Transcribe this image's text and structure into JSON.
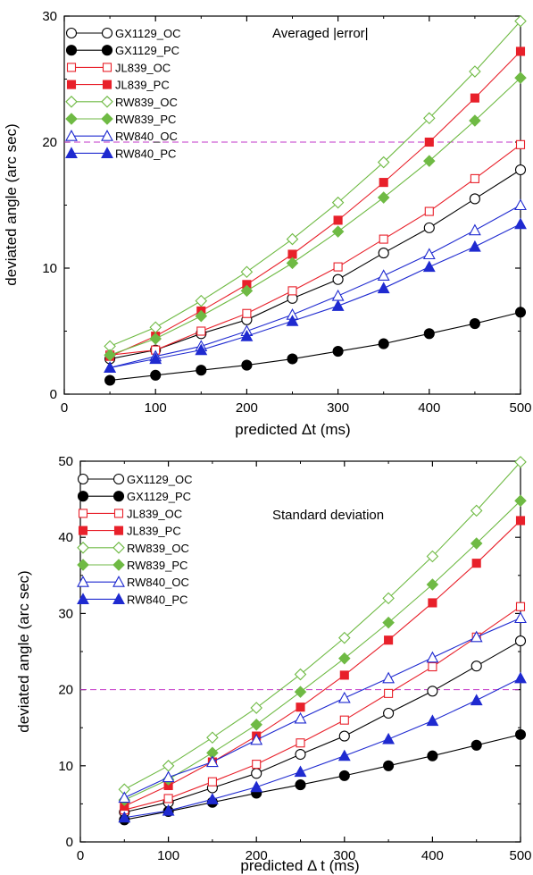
{
  "chart_data": [
    {
      "type": "line",
      "annotation": "Averaged |error|",
      "xlabel": "predicted Δt (ms)",
      "ylabel": "deviated angle (arc sec)",
      "xlim": [
        0,
        500
      ],
      "ylim": [
        0,
        30
      ],
      "xticks": [
        0,
        100,
        200,
        300,
        400,
        500
      ],
      "yticks": [
        0,
        10,
        20,
        30
      ],
      "reference_line": 20,
      "grid": false,
      "legend_position": "top-left",
      "x": [
        50,
        100,
        150,
        200,
        250,
        300,
        350,
        400,
        450,
        500
      ],
      "series": [
        {
          "name": "GX1129_OC",
          "color": "#000000",
          "marker": "circle",
          "filled": false,
          "values": [
            2.8,
            3.5,
            4.8,
            5.9,
            7.6,
            9.1,
            11.2,
            13.2,
            15.5,
            17.8
          ]
        },
        {
          "name": "GX1129_PC",
          "color": "#000000",
          "marker": "circle",
          "filled": true,
          "values": [
            1.1,
            1.5,
            1.9,
            2.3,
            2.8,
            3.4,
            4.0,
            4.8,
            5.6,
            6.5
          ]
        },
        {
          "name": "JL839_OC",
          "color": "#e8202a",
          "marker": "square",
          "filled": false,
          "values": [
            3.1,
            3.5,
            5.0,
            6.4,
            8.2,
            10.1,
            12.3,
            14.5,
            17.1,
            19.8
          ]
        },
        {
          "name": "JL839_PC",
          "color": "#e8202a",
          "marker": "square",
          "filled": true,
          "values": [
            3.0,
            4.6,
            6.6,
            8.7,
            11.1,
            13.8,
            16.8,
            20.0,
            23.5,
            27.2
          ]
        },
        {
          "name": "RW839_OC",
          "color": "#6fba44",
          "marker": "diamond",
          "filled": false,
          "values": [
            3.8,
            5.3,
            7.4,
            9.7,
            12.3,
            15.2,
            18.4,
            21.9,
            25.6,
            29.6
          ]
        },
        {
          "name": "RW839_PC",
          "color": "#6fba44",
          "marker": "diamond",
          "filled": true,
          "values": [
            3.1,
            4.4,
            6.2,
            8.2,
            10.4,
            12.9,
            15.6,
            18.5,
            21.7,
            25.1
          ]
        },
        {
          "name": "RW840_OC",
          "color": "#1f2ad0",
          "marker": "triangle",
          "filled": false,
          "values": [
            2.1,
            3.0,
            3.8,
            5.0,
            6.3,
            7.8,
            9.4,
            11.1,
            13.0,
            15.0
          ]
        },
        {
          "name": "RW840_PC",
          "color": "#1f2ad0",
          "marker": "triangle",
          "filled": true,
          "values": [
            2.1,
            2.8,
            3.5,
            4.6,
            5.8,
            7.0,
            8.4,
            10.1,
            11.7,
            13.5
          ]
        }
      ]
    },
    {
      "type": "line",
      "annotation": "Standard deviation",
      "xlabel": "predicted Δ t (ms)",
      "ylabel": "deviated angle (arc sec)",
      "xlim": [
        0,
        500
      ],
      "ylim": [
        0,
        50
      ],
      "xticks": [
        0,
        100,
        200,
        300,
        400,
        500
      ],
      "yticks": [
        0,
        10,
        20,
        30,
        40,
        50
      ],
      "reference_line": 20,
      "grid": false,
      "legend_position": "top-left",
      "x": [
        50,
        100,
        150,
        200,
        250,
        300,
        350,
        400,
        450,
        500
      ],
      "series": [
        {
          "name": "GX1129_OC",
          "color": "#000000",
          "marker": "circle",
          "filled": false,
          "values": [
            3.9,
            5.2,
            7.1,
            9.0,
            11.5,
            13.9,
            16.9,
            19.8,
            23.1,
            26.4
          ]
        },
        {
          "name": "GX1129_PC",
          "color": "#000000",
          "marker": "circle",
          "filled": true,
          "values": [
            2.9,
            4.0,
            5.2,
            6.4,
            7.5,
            8.7,
            10.0,
            11.3,
            12.7,
            14.1
          ]
        },
        {
          "name": "JL839_OC",
          "color": "#e8202a",
          "marker": "square",
          "filled": false,
          "values": [
            4.2,
            5.7,
            7.9,
            10.2,
            13.0,
            16.0,
            19.5,
            23.0,
            26.9,
            30.9
          ]
        },
        {
          "name": "JL839_PC",
          "color": "#e8202a",
          "marker": "square",
          "filled": true,
          "values": [
            4.7,
            7.4,
            10.5,
            13.9,
            17.7,
            21.9,
            26.5,
            31.4,
            36.6,
            42.2
          ]
        },
        {
          "name": "RW839_OC",
          "color": "#6fba44",
          "marker": "diamond",
          "filled": false,
          "values": [
            6.9,
            10.0,
            13.7,
            17.6,
            22.0,
            26.8,
            32.0,
            37.5,
            43.5,
            49.9
          ]
        },
        {
          "name": "RW839_PC",
          "color": "#6fba44",
          "marker": "diamond",
          "filled": true,
          "values": [
            5.5,
            8.2,
            11.7,
            15.4,
            19.7,
            24.1,
            28.8,
            33.8,
            39.2,
            44.8
          ]
        },
        {
          "name": "RW840_OC",
          "color": "#1f2ad0",
          "marker": "triangle",
          "filled": false,
          "values": [
            5.8,
            8.5,
            10.5,
            13.4,
            16.2,
            18.9,
            21.5,
            24.2,
            26.9,
            29.4
          ]
        },
        {
          "name": "RW840_PC",
          "color": "#1f2ad0",
          "marker": "triangle",
          "filled": true,
          "values": [
            3.2,
            4.1,
            5.6,
            7.2,
            9.2,
            11.3,
            13.5,
            15.9,
            18.6,
            21.5
          ]
        }
      ]
    }
  ]
}
